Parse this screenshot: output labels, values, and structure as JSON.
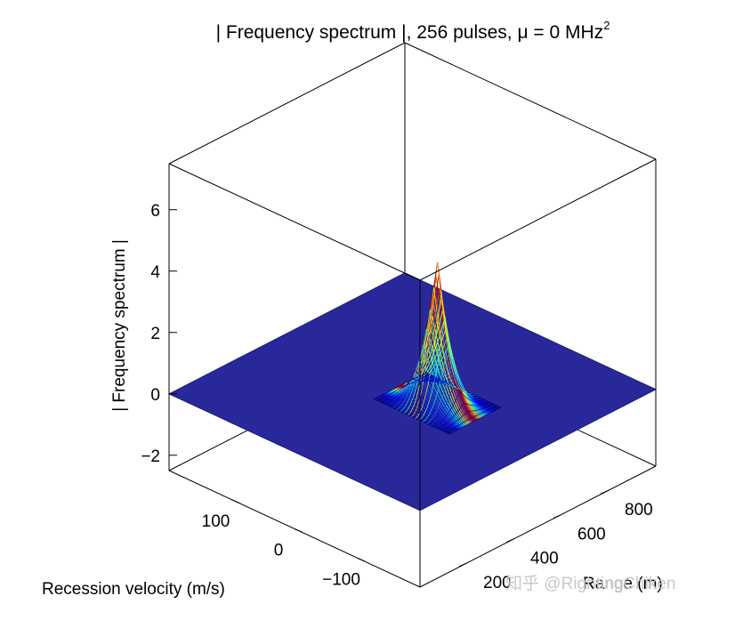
{
  "chart_data": {
    "type": "surface3d",
    "title": "| Frequency spectrum |, 256 pulses, μ = 0 MHz",
    "title_sup": "2",
    "xlabel": "Range (m)",
    "ylabel": "Recession velocity (m/s)",
    "zlabel": "| Frequency spectrum |",
    "xlim": [
      0,
      1000
    ],
    "ylim": [
      -200,
      200
    ],
    "zlim": [
      -2.5,
      7.5
    ],
    "xticks": [
      "200",
      "400",
      "600",
      "800"
    ],
    "xtick_values": [
      200,
      400,
      600,
      800
    ],
    "yticks": [
      "100",
      "0",
      "−100"
    ],
    "ytick_values": [
      100,
      0,
      -100
    ],
    "zticks": [
      "6",
      "4",
      "2",
      "0",
      "−2"
    ],
    "ztick_values": [
      6,
      4,
      2,
      0,
      -2
    ],
    "grid": false,
    "colormap": "jet",
    "plane_color": "#28289a",
    "peak": {
      "range": 500,
      "velocity": -40,
      "amplitude": 4.6
    },
    "watermark": "知乎 @RightingChiken"
  }
}
